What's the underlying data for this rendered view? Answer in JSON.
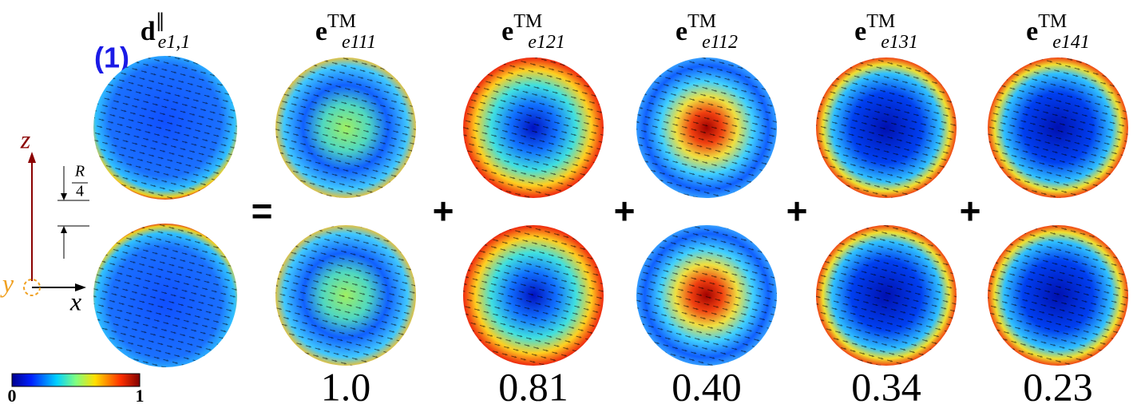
{
  "label": "(1)",
  "equals": "=",
  "plus": "+",
  "panels": [
    {
      "base": "d",
      "sup": "∥",
      "sub": "e1,1"
    },
    {
      "base": "e",
      "sup": "TM",
      "sub": "e111",
      "coefficient": "1.0"
    },
    {
      "base": "e",
      "sup": "TM",
      "sub": "e121",
      "coefficient": "0.81"
    },
    {
      "base": "e",
      "sup": "TM",
      "sub": "e112",
      "coefficient": "0.40"
    },
    {
      "base": "e",
      "sup": "TM",
      "sub": "e131",
      "coefficient": "0.34"
    },
    {
      "base": "e",
      "sup": "TM",
      "sub": "e141",
      "coefficient": "0.23"
    }
  ],
  "axes": {
    "z": "z",
    "x": "x",
    "y": "y",
    "scale": {
      "numerator": "R",
      "denominator": "4"
    }
  },
  "colorbar": {
    "ticks": [
      0,
      1
    ]
  }
}
